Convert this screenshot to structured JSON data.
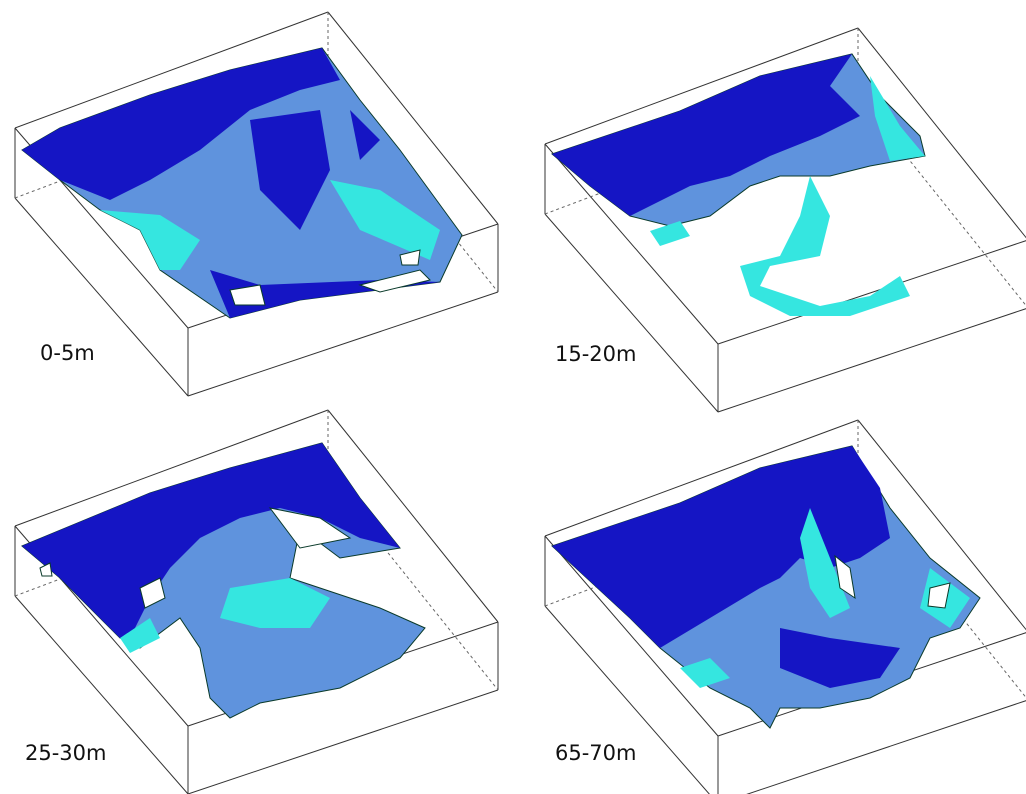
{
  "panels": [
    {
      "label": "0-5m"
    },
    {
      "label": "15-20m"
    },
    {
      "label": "25-30m"
    },
    {
      "label": "65-70m"
    }
  ]
}
